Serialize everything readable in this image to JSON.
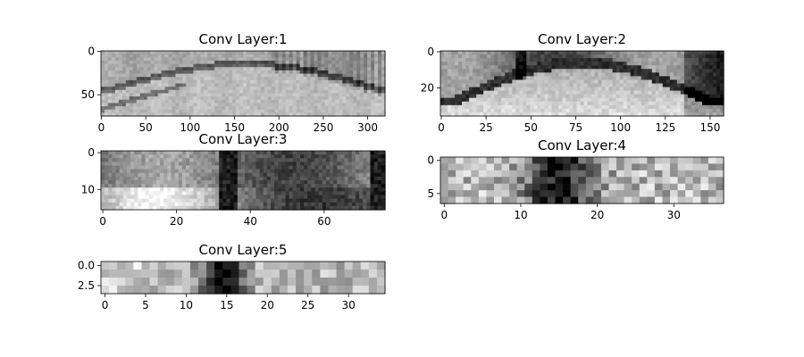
{
  "chart_data": [
    {
      "type": "heatmap",
      "title": "Conv Layer:1",
      "colormap": "gray",
      "xlim": [
        -0.5,
        319.5
      ],
      "ylim": [
        74.5,
        -0.5
      ],
      "xticks": [
        0,
        50,
        100,
        150,
        200,
        250,
        300
      ],
      "yticks": [
        0,
        50
      ],
      "x_tick_labels": [
        "0",
        "50",
        "100",
        "150",
        "200",
        "250",
        "300"
      ],
      "y_tick_labels": [
        "0",
        "50"
      ]
    },
    {
      "type": "heatmap",
      "title": "Conv Layer:2",
      "colormap": "gray",
      "xlim": [
        -0.5,
        157.5
      ],
      "ylim": [
        35.5,
        -0.5
      ],
      "xticks": [
        0,
        25,
        50,
        75,
        100,
        125,
        150
      ],
      "yticks": [
        0,
        20
      ],
      "x_tick_labels": [
        "0",
        "25",
        "50",
        "75",
        "100",
        "125",
        "150"
      ],
      "y_tick_labels": [
        "0",
        "20"
      ]
    },
    {
      "type": "heatmap",
      "title": "Conv Layer:3",
      "colormap": "gray",
      "xlim": [
        -0.5,
        76.5
      ],
      "ylim": [
        15.5,
        -0.5
      ],
      "xticks": [
        0,
        20,
        40,
        60
      ],
      "yticks": [
        0,
        10
      ],
      "x_tick_labels": [
        "0",
        "20",
        "40",
        "60"
      ],
      "y_tick_labels": [
        "0",
        "10"
      ]
    },
    {
      "type": "heatmap",
      "title": "Conv Layer:4",
      "colormap": "gray",
      "xlim": [
        -0.5,
        36.5
      ],
      "ylim": [
        6.5,
        -0.5
      ],
      "xticks": [
        0,
        10,
        20,
        30
      ],
      "yticks": [
        0,
        5
      ],
      "x_tick_labels": [
        "0",
        "10",
        "20",
        "30"
      ],
      "y_tick_labels": [
        "0",
        "5"
      ]
    },
    {
      "type": "heatmap",
      "title": "Conv Layer:5",
      "colormap": "gray",
      "xlim": [
        -0.5,
        34.5
      ],
      "ylim": [
        3.5,
        -0.5
      ],
      "xticks": [
        0,
        5,
        10,
        15,
        20,
        25,
        30
      ],
      "yticks": [
        0.0,
        2.5
      ],
      "x_tick_labels": [
        "0",
        "5",
        "10",
        "15",
        "20",
        "25",
        "30"
      ],
      "y_tick_labels": [
        "0.0",
        "2.5"
      ]
    }
  ]
}
